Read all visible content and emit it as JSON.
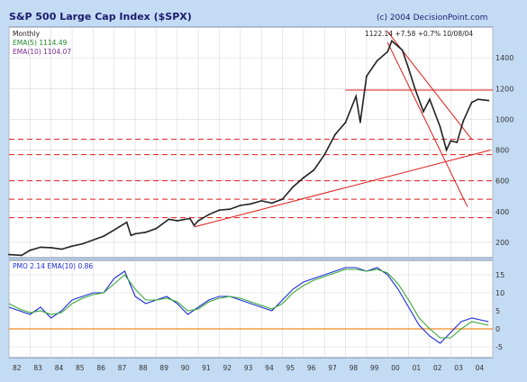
{
  "header": {
    "title": "S&P 500 Large Cap Index ($SPX)",
    "copyright": "(c) 2004 DecisionPoint.com"
  },
  "colors": {
    "background": "#c4dbf4",
    "panel": "#ffffff",
    "price": "#222222",
    "ema_fast": "#1e8a2a",
    "ema_slow": "#7a2b90",
    "trendline": "#e01818",
    "pmo": "#1a2bd8",
    "pmo_signal": "#3aa63a",
    "zero_line": "#f08a20"
  },
  "chart_data": [
    {
      "type": "line",
      "panel": "price",
      "title": "S&P 500 Large Cap Index ($SPX)",
      "period_label": "Monthly",
      "latest_readout": "1122.14 +7.58 +0.7% 10/08/04",
      "ema_fast_label": "EMA(5) 1114.49",
      "ema_slow_label": "EMA(10) 1104.07",
      "ylim": [
        100,
        1600
      ],
      "yticks": [
        200,
        400,
        600,
        800,
        1000,
        1200,
        1400
      ],
      "grid": true,
      "series": [
        {
          "name": "$SPX",
          "x": [
            1982.0,
            1982.6,
            1983.0,
            1983.5,
            1984.0,
            1984.5,
            1985.0,
            1985.5,
            1986.0,
            1986.5,
            1987.0,
            1987.6,
            1987.8,
            1988.0,
            1988.5,
            1989.0,
            1989.6,
            1990.0,
            1990.6,
            1990.8,
            1991.0,
            1991.5,
            1992.0,
            1992.5,
            1993.0,
            1993.5,
            1994.0,
            1994.5,
            1995.0,
            1995.5,
            1996.0,
            1996.5,
            1997.0,
            1997.5,
            1998.0,
            1998.5,
            1998.7,
            1999.0,
            1999.5,
            2000.0,
            2000.2,
            2000.7,
            2001.0,
            2001.3,
            2001.7,
            2002.0,
            2002.5,
            2002.8,
            2003.0,
            2003.3,
            2003.6,
            2004.0,
            2004.3,
            2004.8
          ],
          "values": [
            120,
            115,
            148,
            168,
            165,
            155,
            175,
            190,
            215,
            240,
            280,
            330,
            245,
            255,
            265,
            290,
            350,
            340,
            355,
            310,
            340,
            380,
            410,
            415,
            440,
            450,
            470,
            455,
            480,
            560,
            620,
            670,
            770,
            900,
            980,
            1150,
            980,
            1280,
            1380,
            1440,
            1510,
            1450,
            1330,
            1200,
            1050,
            1130,
            950,
            800,
            860,
            850,
            990,
            1110,
            1130,
            1122
          ]
        }
      ],
      "horizontal_levels": [
        1190,
        870,
        770,
        600,
        480,
        360
      ],
      "trendlines": [
        {
          "from": [
            1990.8,
            300
          ],
          "to": [
            2004.9,
            800
          ]
        },
        {
          "from": [
            2000.0,
            1570
          ],
          "to": [
            2004.0,
            870
          ]
        },
        {
          "from": [
            2000.0,
            1500
          ],
          "to": [
            2003.8,
            430
          ]
        }
      ]
    },
    {
      "type": "line",
      "panel": "indicator",
      "readout": "PMO 2.14 EMA(10) 0.86",
      "ylim": [
        -8,
        19
      ],
      "yticks": [
        -5,
        0,
        5,
        10,
        15
      ],
      "grid": true,
      "x_tick_labels": [
        "82",
        "83",
        "84",
        "85",
        "86",
        "87",
        "88",
        "89",
        "90",
        "91",
        "92",
        "93",
        "94",
        "95",
        "96",
        "97",
        "98",
        "99",
        "00",
        "01",
        "02",
        "03",
        "04"
      ],
      "series": [
        {
          "name": "PMO",
          "x": [
            1982.0,
            1982.5,
            1983.0,
            1983.5,
            1984.0,
            1984.5,
            1985.0,
            1985.5,
            1986.0,
            1986.5,
            1987.0,
            1987.5,
            1988.0,
            1988.5,
            1989.0,
            1989.5,
            1990.0,
            1990.5,
            1991.0,
            1991.5,
            1992.0,
            1992.5,
            1993.0,
            1993.5,
            1994.0,
            1994.5,
            1995.0,
            1995.5,
            1996.0,
            1996.5,
            1997.0,
            1997.5,
            1998.0,
            1998.5,
            1999.0,
            1999.5,
            2000.0,
            2000.5,
            2001.0,
            2001.5,
            2002.0,
            2002.5,
            2003.0,
            2003.5,
            2004.0,
            2004.8
          ],
          "values": [
            6,
            5,
            4,
            6,
            3,
            5,
            8,
            9,
            10,
            10,
            14,
            16,
            9,
            7,
            8,
            9,
            7,
            4,
            6,
            8,
            9,
            9,
            8,
            7,
            6,
            5,
            8,
            11,
            13,
            14,
            15,
            16,
            17,
            17,
            16,
            17,
            15,
            11,
            6,
            1,
            -2,
            -4,
            -1,
            2,
            3,
            2
          ]
        },
        {
          "name": "EMA(10)",
          "x": [
            1982.0,
            1982.5,
            1983.0,
            1983.5,
            1984.0,
            1984.5,
            1985.0,
            1985.5,
            1986.0,
            1986.5,
            1987.0,
            1987.5,
            1988.0,
            1988.5,
            1989.0,
            1989.5,
            1990.0,
            1990.5,
            1991.0,
            1991.5,
            1992.0,
            1992.5,
            1993.0,
            1993.5,
            1994.0,
            1994.5,
            1995.0,
            1995.5,
            1996.0,
            1996.5,
            1997.0,
            1997.5,
            1998.0,
            1998.5,
            1999.0,
            1999.5,
            2000.0,
            2000.5,
            2001.0,
            2001.5,
            2002.0,
            2002.5,
            2003.0,
            2003.5,
            2004.0,
            2004.8
          ],
          "values": [
            7,
            5.5,
            4.5,
            5,
            4,
            4.5,
            7,
            8.5,
            9.5,
            10,
            12.5,
            15,
            11,
            8,
            8,
            8.5,
            7.5,
            5,
            5.5,
            7.5,
            8.5,
            9,
            8.5,
            7.5,
            6.5,
            5.5,
            7,
            10,
            12,
            13.5,
            14.5,
            15.5,
            16.5,
            16.5,
            16,
            16.5,
            15.5,
            12.5,
            8,
            3,
            0,
            -2.5,
            -2.5,
            0,
            2,
            1
          ]
        }
      ]
    }
  ]
}
